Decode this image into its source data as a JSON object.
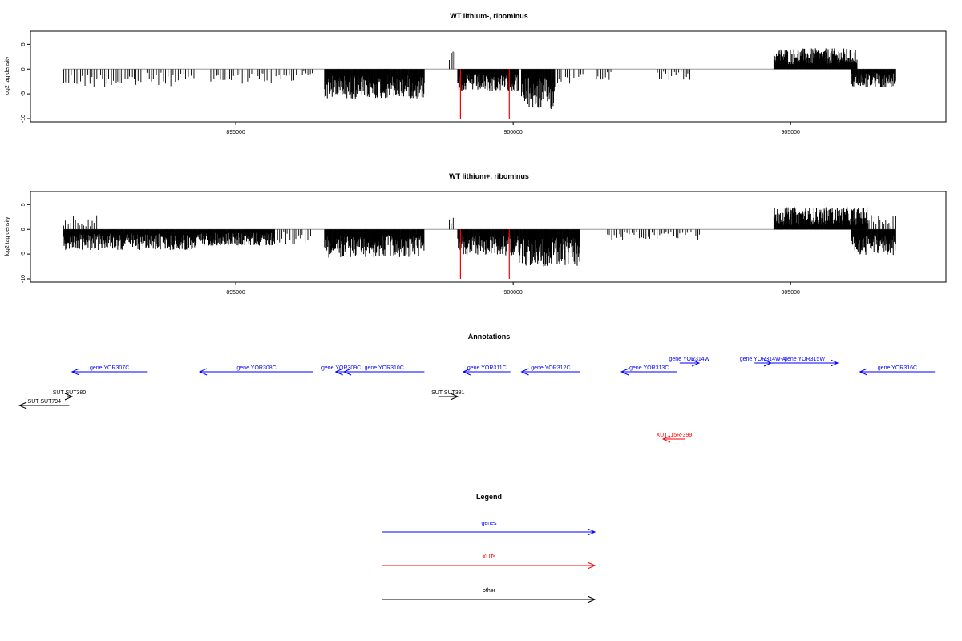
{
  "colors": {
    "gene": "#0000ff",
    "xut": "#ff0000",
    "other": "#000000",
    "zero_line": "#999999",
    "marker": "#ff0000"
  },
  "chart_data": [
    {
      "type": "bar",
      "title": "WT lithium-, ribominus",
      "ylabel": "log2 tag density",
      "xlim": [
        891300,
        907800
      ],
      "ylim": [
        -10,
        7
      ],
      "x_ticks": [
        895000,
        900000,
        905000
      ],
      "x_tick_labels": [
        "895000",
        "900000",
        "905000"
      ],
      "y_ticks": [
        -10,
        -5,
        0,
        5
      ],
      "y_tick_labels": [
        "-10",
        "-5",
        "0",
        "5"
      ],
      "grid": false,
      "marker_positions": [
        899050,
        899930
      ],
      "segments": [
        {
          "start": 891900,
          "end": 893300,
          "mean": -2.5,
          "dense": false
        },
        {
          "start": 893400,
          "end": 894300,
          "mean": -2.3,
          "dense": false
        },
        {
          "start": 894500,
          "end": 895300,
          "mean": -2.0,
          "dense": false
        },
        {
          "start": 895400,
          "end": 896100,
          "mean": -2.0,
          "dense": false
        },
        {
          "start": 896200,
          "end": 896400,
          "mean": -1.0,
          "dense": false
        },
        {
          "start": 896600,
          "end": 898400,
          "mean": -4.0,
          "dense": true
        },
        {
          "start": 898850,
          "end": 898950,
          "mean": 2.5,
          "dense": false
        },
        {
          "start": 899000,
          "end": 900100,
          "mean": -3.0,
          "dense": true
        },
        {
          "start": 900150,
          "end": 900750,
          "mean": -5.5,
          "dense": true
        },
        {
          "start": 900800,
          "end": 901300,
          "mean": -2.0,
          "dense": false
        },
        {
          "start": 901500,
          "end": 901800,
          "mean": -1.5,
          "dense": false
        },
        {
          "start": 902600,
          "end": 903200,
          "mean": -1.5,
          "dense": false
        },
        {
          "start": 904700,
          "end": 906200,
          "mean": 2.8,
          "dense": true
        },
        {
          "start": 906100,
          "end": 906900,
          "mean": -2.5,
          "dense": true
        }
      ]
    },
    {
      "type": "bar",
      "title": "WT lithium+, ribominus",
      "ylabel": "log2 tag density",
      "xlim": [
        891300,
        907800
      ],
      "ylim": [
        -10,
        7
      ],
      "x_ticks": [
        895000,
        900000,
        905000
      ],
      "x_tick_labels": [
        "895000",
        "900000",
        "905000"
      ],
      "y_ticks": [
        -10,
        -5,
        0,
        5
      ],
      "y_tick_labels": [
        "-10",
        "-5",
        "0",
        "5"
      ],
      "grid": false,
      "marker_positions": [
        899050,
        899930
      ],
      "segments": [
        {
          "start": 891900,
          "end": 892500,
          "mean": 2.0,
          "dense": false
        },
        {
          "start": 891900,
          "end": 894300,
          "mean": -2.8,
          "dense": true
        },
        {
          "start": 894300,
          "end": 895700,
          "mean": -2.2,
          "dense": true
        },
        {
          "start": 895700,
          "end": 896400,
          "mean": -2.0,
          "dense": false
        },
        {
          "start": 896600,
          "end": 898400,
          "mean": -3.8,
          "dense": true
        },
        {
          "start": 898850,
          "end": 898950,
          "mean": 2.5,
          "dense": false
        },
        {
          "start": 899000,
          "end": 900100,
          "mean": -3.5,
          "dense": true
        },
        {
          "start": 900100,
          "end": 901200,
          "mean": -5.0,
          "dense": true
        },
        {
          "start": 901700,
          "end": 903400,
          "mean": -1.5,
          "dense": false
        },
        {
          "start": 904700,
          "end": 906400,
          "mean": 3.0,
          "dense": true
        },
        {
          "start": 906200,
          "end": 906900,
          "mean": 2.0,
          "dense": false
        },
        {
          "start": 906100,
          "end": 906900,
          "mean": -3.5,
          "dense": true
        }
      ]
    },
    {
      "type": "annotation_track",
      "title": "Annotations",
      "xlim": [
        891300,
        907800
      ],
      "features": [
        {
          "label": "gene YOR307C",
          "start": 892050,
          "end": 893400,
          "strand": "-",
          "kind": "gene",
          "row": 0
        },
        {
          "label": "gene YOR308C",
          "start": 894350,
          "end": 896400,
          "strand": "-",
          "kind": "gene",
          "row": 0
        },
        {
          "label": "gene YOR309C",
          "start": 896800,
          "end": 897000,
          "strand": "-",
          "kind": "gene",
          "row": 0
        },
        {
          "label": "gene YOR310C",
          "start": 896950,
          "end": 898400,
          "strand": "-",
          "kind": "gene",
          "row": 0
        },
        {
          "label": "gene YOR311C",
          "start": 899100,
          "end": 899950,
          "strand": "-",
          "kind": "gene",
          "row": 0
        },
        {
          "label": "gene YOR312C",
          "start": 900150,
          "end": 901200,
          "strand": "-",
          "kind": "gene",
          "row": 0
        },
        {
          "label": "gene YOR313C",
          "start": 901950,
          "end": 902950,
          "strand": "-",
          "kind": "gene",
          "row": 0
        },
        {
          "label": "gene YOR314W",
          "start": 903000,
          "end": 903350,
          "strand": "+",
          "kind": "gene",
          "row": 1
        },
        {
          "label": "gene YOR314W-A",
          "start": 904350,
          "end": 904650,
          "strand": "+",
          "kind": "gene",
          "row": 1
        },
        {
          "label": "gene YOR315W",
          "start": 904650,
          "end": 905850,
          "strand": "+",
          "kind": "gene",
          "row": 1
        },
        {
          "label": "gene YOR316C",
          "start": 906250,
          "end": 907600,
          "strand": "-",
          "kind": "gene",
          "row": 0
        },
        {
          "label": "SUT SUT380",
          "start": 891950,
          "end": 892050,
          "strand": "+",
          "kind": "other",
          "row": 2
        },
        {
          "label": "SUT SUT794",
          "start": 891100,
          "end": 892000,
          "strand": "-",
          "kind": "other",
          "row": 3
        },
        {
          "label": "SUT SUT381",
          "start": 898650,
          "end": 899000,
          "strand": "+",
          "kind": "other",
          "row": 2
        },
        {
          "label": "XUT_15R-399",
          "start": 902700,
          "end": 903100,
          "strand": "-",
          "kind": "xut",
          "row": 4
        }
      ]
    },
    {
      "type": "legend",
      "title": "Legend",
      "entries": [
        {
          "label": "genes",
          "kind": "gene"
        },
        {
          "label": "XUTs",
          "kind": "xut"
        },
        {
          "label": "other",
          "kind": "other"
        }
      ]
    }
  ]
}
